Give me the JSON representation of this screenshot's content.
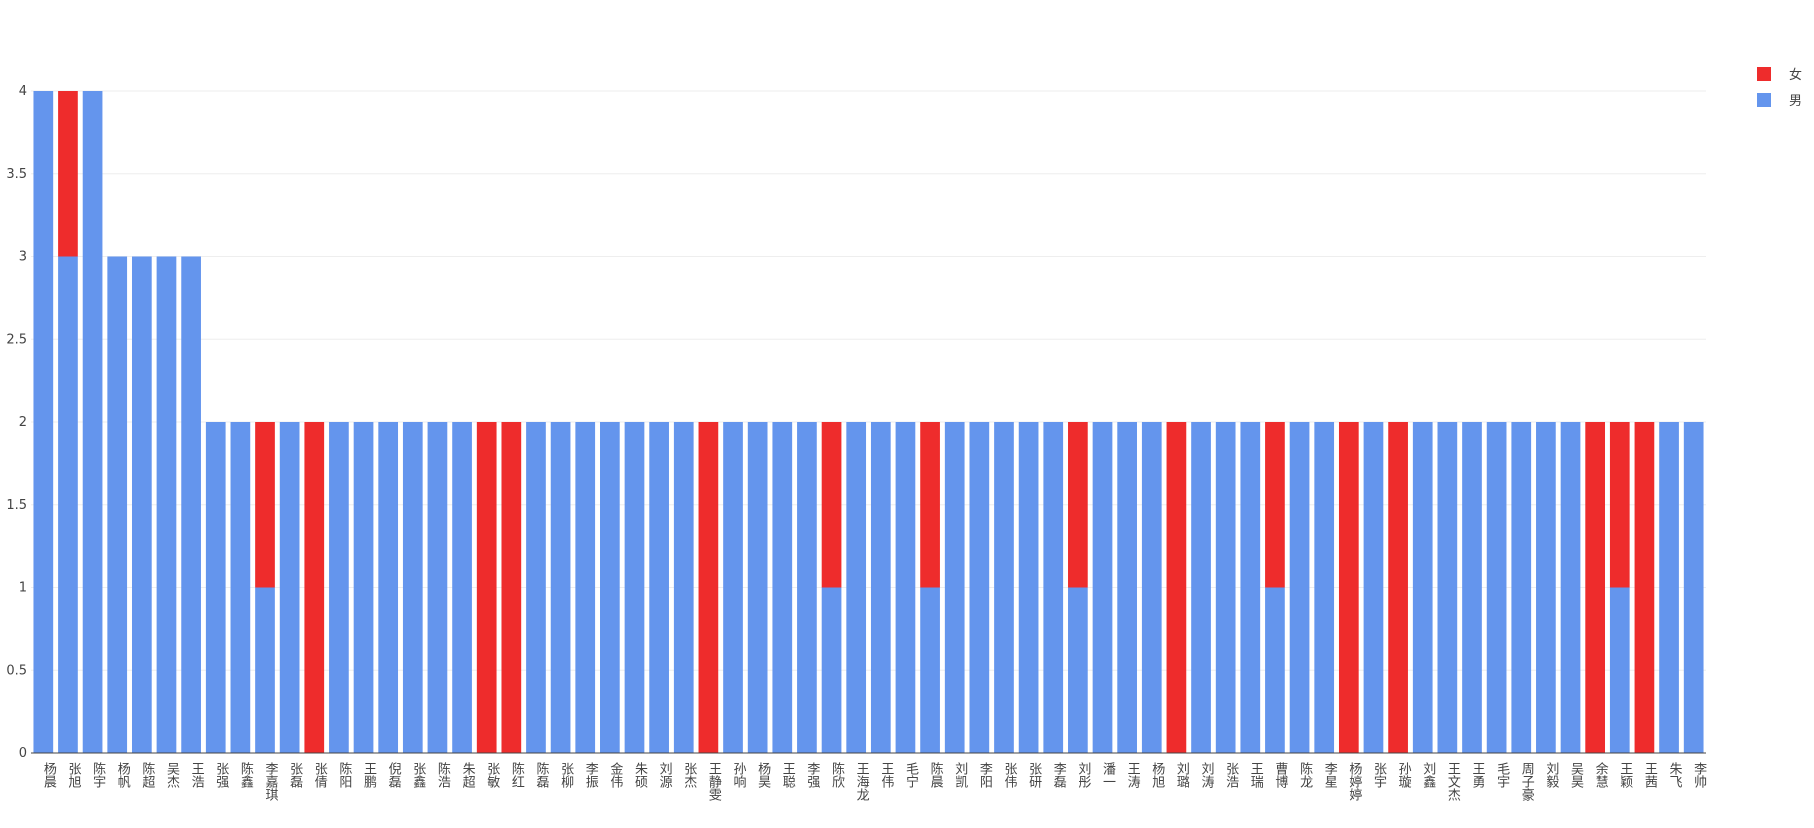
{
  "chart_data": {
    "type": "bar",
    "stacked": true,
    "title": "",
    "xlabel": "",
    "ylabel": "",
    "ylim": [
      0,
      4
    ],
    "yticks": [
      "0",
      "0.5",
      "1",
      "1.5",
      "2",
      "2.5",
      "3",
      "3.5",
      "4"
    ],
    "grid": true,
    "legend_position": "top-right",
    "categories": [
      "杨晨",
      "张旭",
      "陈宇",
      "杨帆",
      "陈超",
      "吴杰",
      "王浩",
      "张强",
      "陈鑫",
      "李嘉琪",
      "张磊",
      "张倩",
      "陈阳",
      "王鹏",
      "倪磊",
      "张鑫",
      "陈浩",
      "朱超",
      "张敏",
      "陈红",
      "陈磊",
      "张柳",
      "李振",
      "金伟",
      "朱硕",
      "刘源",
      "张杰",
      "王静雯",
      "孙响",
      "杨昊",
      "王聪",
      "李强",
      "陈欣",
      "王海龙",
      "王伟",
      "毛宁",
      "陈晨",
      "刘凯",
      "李阳",
      "张伟",
      "张研",
      "李磊",
      "刘彤",
      "潘一",
      "王涛",
      "杨旭",
      "刘璐",
      "刘涛",
      "张浩",
      "王瑞",
      "曹博",
      "陈龙",
      "李星",
      "杨婷婷",
      "张宇",
      "孙璇",
      "刘鑫",
      "王文杰",
      "王勇",
      "毛宇",
      "周子豪",
      "刘毅",
      "吴昊",
      "余慧",
      "王颖",
      "王茜",
      "朱飞",
      "李帅"
    ],
    "series": [
      {
        "name": "男",
        "color": "#6495ED",
        "values": [
          4,
          3,
          4,
          3,
          3,
          3,
          3,
          2,
          2,
          1,
          2,
          0,
          2,
          2,
          2,
          2,
          2,
          2,
          0,
          0,
          2,
          2,
          2,
          2,
          2,
          2,
          2,
          0,
          2,
          2,
          2,
          2,
          1,
          2,
          2,
          2,
          1,
          2,
          2,
          2,
          2,
          2,
          1,
          2,
          2,
          2,
          0,
          2,
          2,
          2,
          1,
          2,
          2,
          0,
          2,
          0,
          2,
          2,
          2,
          2,
          2,
          2,
          2,
          0,
          1,
          0,
          2,
          2
        ]
      },
      {
        "name": "女",
        "color": "#EE2C2C",
        "values": [
          0,
          1,
          0,
          0,
          0,
          0,
          0,
          0,
          0,
          1,
          0,
          2,
          0,
          0,
          0,
          0,
          0,
          0,
          2,
          2,
          0,
          0,
          0,
          0,
          0,
          0,
          0,
          2,
          0,
          0,
          0,
          0,
          1,
          0,
          0,
          0,
          1,
          0,
          0,
          0,
          0,
          0,
          1,
          0,
          0,
          0,
          2,
          0,
          0,
          0,
          1,
          0,
          0,
          2,
          0,
          2,
          0,
          0,
          0,
          0,
          0,
          0,
          0,
          2,
          1,
          2,
          0,
          0
        ]
      }
    ],
    "legend": [
      "女",
      "男"
    ]
  }
}
